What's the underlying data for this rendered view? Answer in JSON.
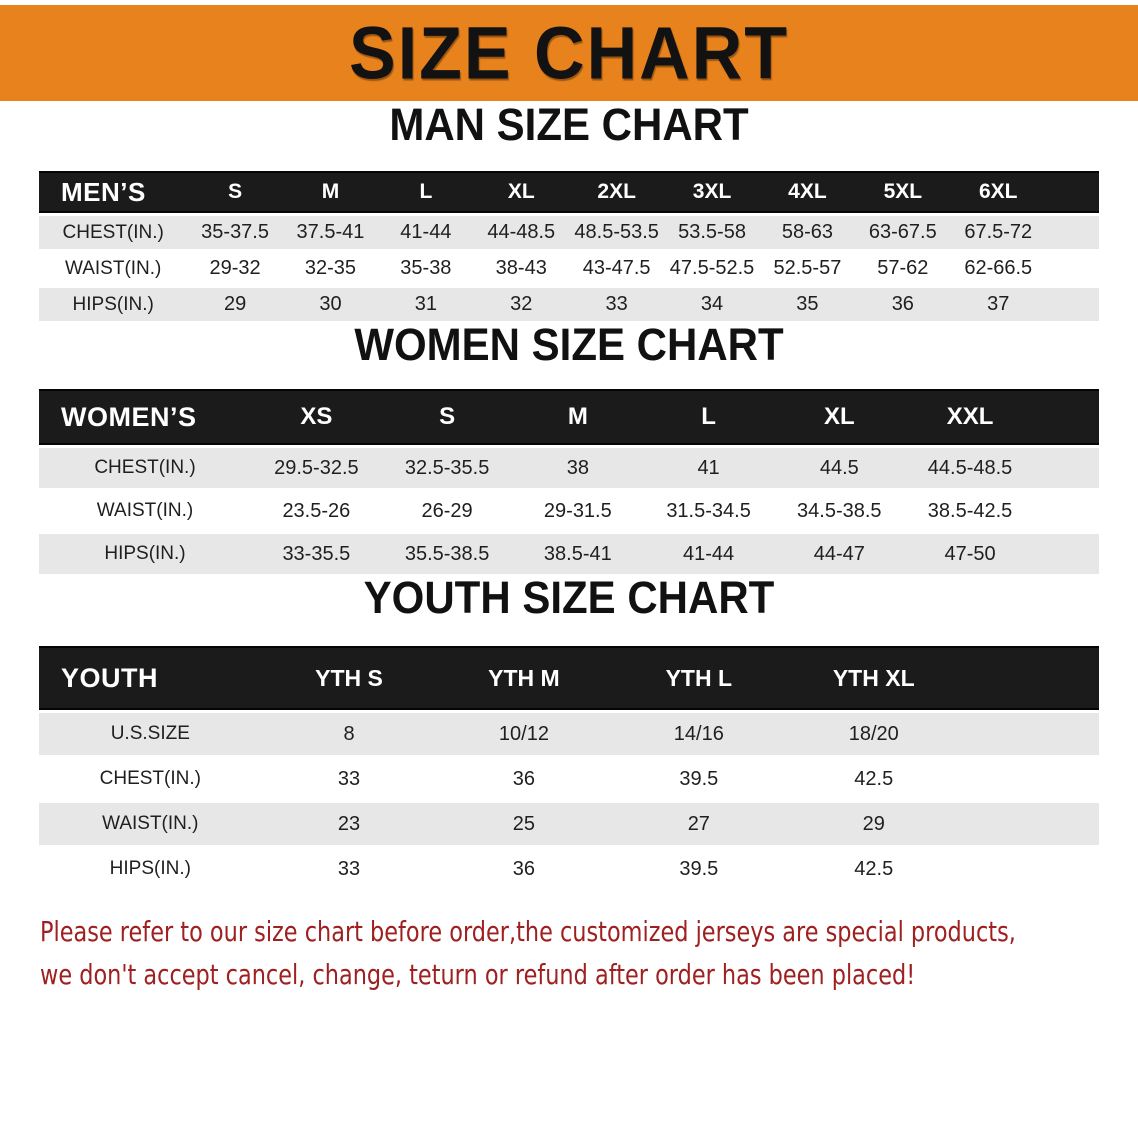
{
  "banner": {
    "title": "SIZE CHART"
  },
  "colors": {
    "banner_bg": "#E8821C",
    "table_header_bg": "#1B1B1B",
    "row_alt_bg": "#E7E7E7",
    "disclaimer_text": "#9E2020"
  },
  "sections": [
    {
      "id": "men",
      "heading": "MAN SIZE CHART",
      "table": {
        "header": [
          "MEN’S",
          "S",
          "M",
          "L",
          "XL",
          "2XL",
          "3XL",
          "4XL",
          "5XL",
          "6XL"
        ],
        "rows": [
          {
            "label": "CHEST(IN.)",
            "values": [
              "35-37.5",
              "37.5-41",
              "41-44",
              "44-48.5",
              "48.5-53.5",
              "53.5-58",
              "58-63",
              "63-67.5",
              "67.5-72"
            ]
          },
          {
            "label": "WAIST(IN.)",
            "values": [
              "29-32",
              "32-35",
              "35-38",
              "38-43",
              "43-47.5",
              "47.5-52.5",
              "52.5-57",
              "57-62",
              "62-66.5"
            ]
          },
          {
            "label": "HIPS(IN.)",
            "values": [
              "29",
              "30",
              "31",
              "32",
              "33",
              "34",
              "35",
              "36",
              "37"
            ]
          }
        ]
      }
    },
    {
      "id": "women",
      "heading": "WOMEN SIZE CHART",
      "table": {
        "header": [
          "WOMEN’S",
          "XS",
          "S",
          "M",
          "L",
          "XL",
          "XXL"
        ],
        "rows": [
          {
            "label": "CHEST(IN.)",
            "values": [
              "29.5-32.5",
              "32.5-35.5",
              "38",
              "41",
              "44.5",
              "44.5-48.5"
            ]
          },
          {
            "label": "WAIST(IN.)",
            "values": [
              "23.5-26",
              "26-29",
              "29-31.5",
              "31.5-34.5",
              "34.5-38.5",
              "38.5-42.5"
            ]
          },
          {
            "label": "HIPS(IN.)",
            "values": [
              "33-35.5",
              "35.5-38.5",
              "38.5-41",
              "41-44",
              "44-47",
              "47-50"
            ]
          }
        ]
      }
    },
    {
      "id": "youth",
      "heading": "YOUTH SIZE CHART",
      "table": {
        "header": [
          "YOUTH",
          "YTH S",
          "YTH M",
          "YTH L",
          "YTH XL"
        ],
        "rows": [
          {
            "label": "U.S.SIZE",
            "values": [
              "8",
              "10/12",
              "14/16",
              "18/20"
            ]
          },
          {
            "label": "CHEST(IN.)",
            "values": [
              "33",
              "36",
              "39.5",
              "42.5"
            ]
          },
          {
            "label": "WAIST(IN.)",
            "values": [
              "23",
              "25",
              "27",
              "29"
            ]
          },
          {
            "label": "HIPS(IN.)",
            "values": [
              "33",
              "36",
              "39.5",
              "42.5"
            ]
          }
        ]
      }
    }
  ],
  "disclaimer": {
    "lines": [
      "Please refer to our size chart before order,the customized jerseys are special products,",
      "we don't accept cancel, change, teturn or refund after order has been placed!"
    ]
  }
}
